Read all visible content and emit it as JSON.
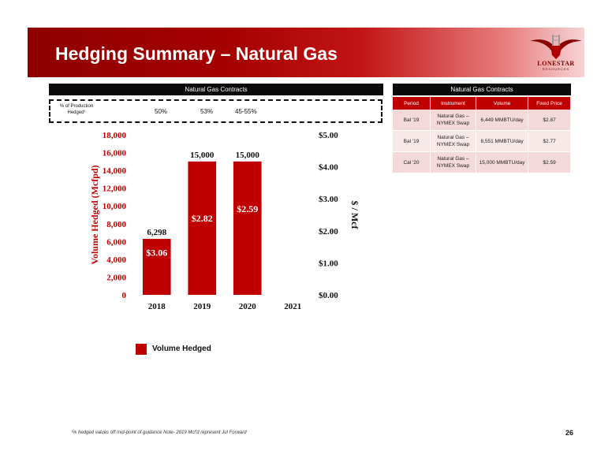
{
  "header": {
    "title": "Hedging Summary – Natural Gas"
  },
  "logo": {
    "name": "LONESTAR",
    "sub": "RESOURCES"
  },
  "left_panel": {
    "header": "Natural Gas Contracts",
    "pct_label": "% of Production Hedged¹",
    "pct_values": [
      "50%",
      "53%",
      "45-55%"
    ]
  },
  "chart_data": {
    "type": "bar",
    "categories": [
      "2018",
      "2019",
      "2020",
      "2021"
    ],
    "series": [
      {
        "name": "Volume Hedged",
        "values": [
          6298,
          15000,
          15000,
          0
        ]
      }
    ],
    "data_labels": [
      "6,298",
      "15,000",
      "15,000",
      ""
    ],
    "price_labels": [
      "$3.06",
      "$2.82",
      "$2.59",
      ""
    ],
    "ylabel": "Volume Hedged (Mcfpd)",
    "y2label": "$ / Mcf",
    "ylim": [
      0,
      18000
    ],
    "yticks": [
      "0",
      "2,000",
      "4,000",
      "6,000",
      "8,000",
      "10,000",
      "12,000",
      "14,000",
      "16,000",
      "18,000"
    ],
    "y2lim": [
      0,
      5
    ],
    "y2ticks": [
      "$0.00",
      "$1.00",
      "$2.00",
      "$3.00",
      "$4.00",
      "$5.00"
    ],
    "legend": "Volume Hedged",
    "color": "#c00000"
  },
  "table": {
    "header": "Natural Gas Contracts",
    "columns": [
      "Period",
      "Instrument",
      "Volume",
      "Fixed Price"
    ],
    "rows": [
      [
        "Bal '19",
        "Natural Gas – NYMEX Swap",
        "6,449 MMBTU/day",
        "$2.87"
      ],
      [
        "Bal '19",
        "Natural Gas – NYMEX Swap",
        "8,551 MMBTU/day",
        "$2.77"
      ],
      [
        "Cal '20",
        "Natural Gas – NYMEX Swap",
        "15,000 MMBTU/day",
        "$2.59"
      ]
    ]
  },
  "footer": {
    "footnote": "¹% hedged values off mid-point of guidance   Note- 2019 Mcf'd represent Jul Forward",
    "page": "26"
  }
}
